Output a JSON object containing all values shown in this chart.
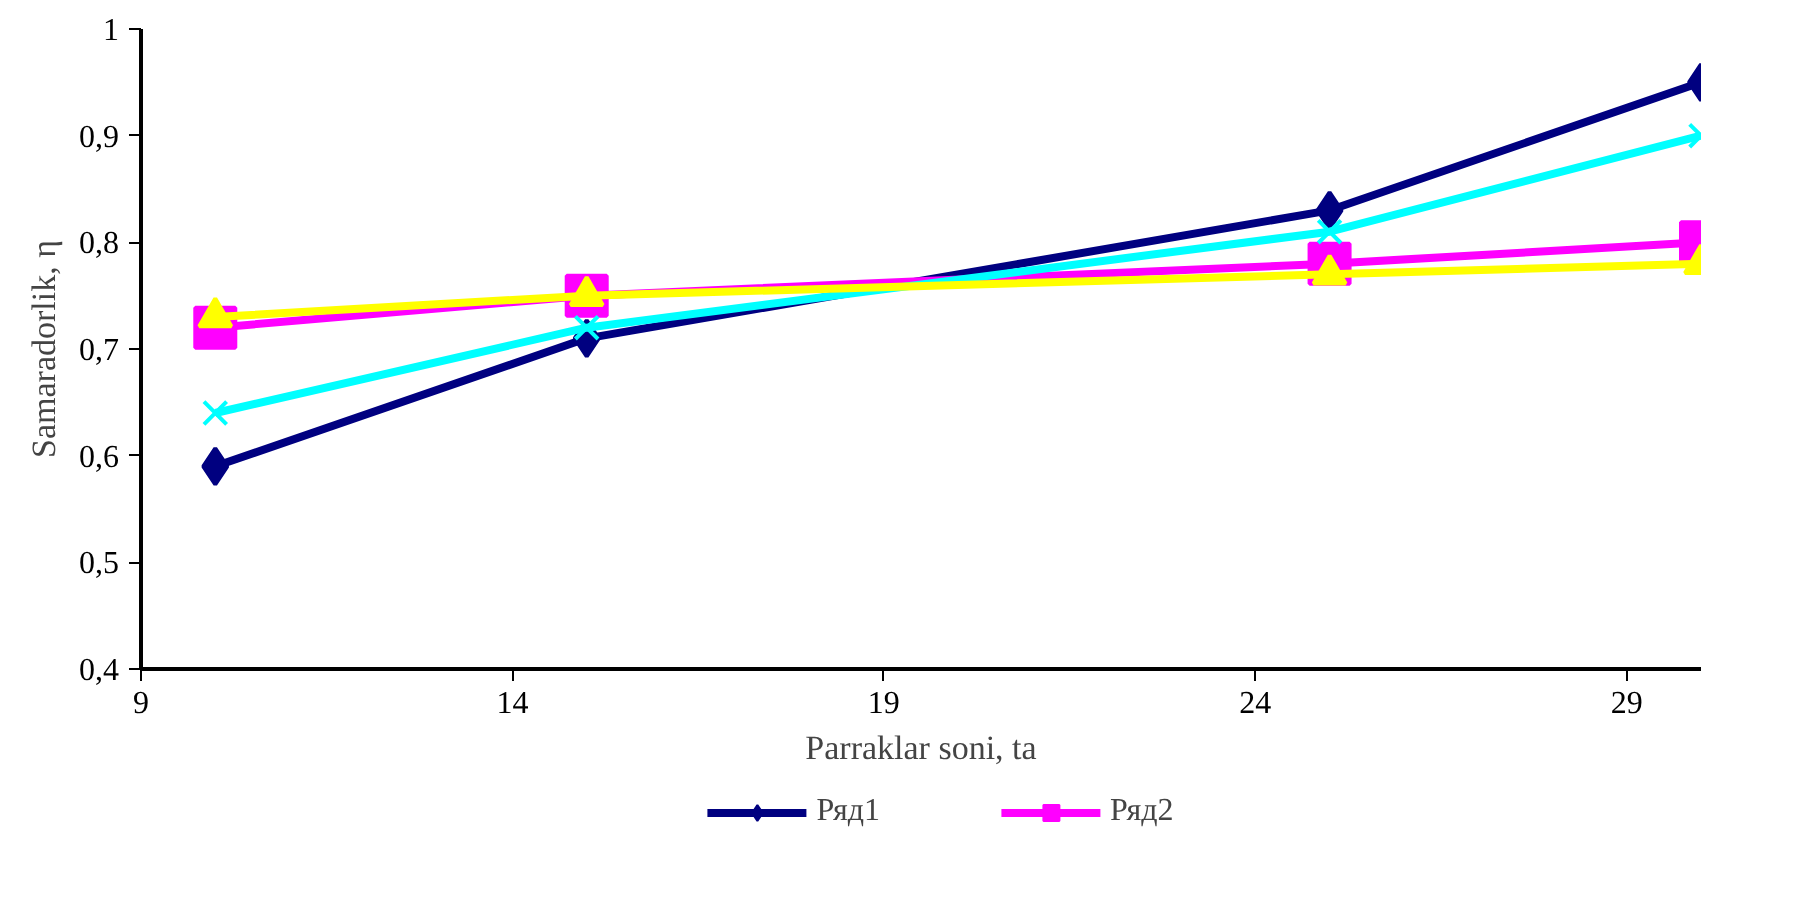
{
  "chart_data": {
    "type": "line",
    "xlabel": "Parraklar soni, ta",
    "ylabel": "Samaradorlik, η",
    "x": [
      10,
      15,
      25,
      30
    ],
    "series": [
      {
        "name": "Ряд1",
        "color": "#000080",
        "marker": "diamond",
        "values": [
          0.59,
          0.71,
          0.83,
          0.95
        ]
      },
      {
        "name": "Ряд2",
        "color": "#ff00ff",
        "marker": "square",
        "values": [
          0.72,
          0.75,
          0.78,
          0.8
        ]
      },
      {
        "color": "#00ffff",
        "marker": "cross",
        "values": [
          0.64,
          0.72,
          0.81,
          0.9
        ]
      },
      {
        "color": "#ffff00",
        "marker": "triangle",
        "values": [
          0.73,
          0.75,
          0.77,
          0.78
        ]
      }
    ],
    "xlim": [
      9,
      30
    ],
    "xticks": [
      9,
      14,
      19,
      24,
      29
    ],
    "ylim": [
      0.4,
      1
    ],
    "yticks": [
      {
        "value": 0.4,
        "label": "0,4"
      },
      {
        "value": 0.5,
        "label": "0,5"
      },
      {
        "value": 0.6,
        "label": "0,6"
      },
      {
        "value": 0.7,
        "label": "0,7"
      },
      {
        "value": 0.8,
        "label": "0,8"
      },
      {
        "value": 0.9,
        "label": "0,9"
      },
      {
        "value": 1,
        "label": "1"
      }
    ],
    "grid": false,
    "legend": "bottom"
  }
}
